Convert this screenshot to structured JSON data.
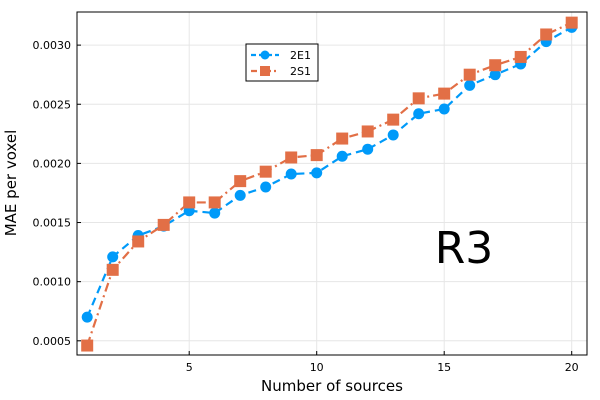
{
  "chart_data": {
    "type": "line",
    "xlabel": "Number of sources",
    "ylabel": "MAE per voxel",
    "xlim": [
      0.6,
      20.6
    ],
    "ylim": [
      0.00038,
      0.00328
    ],
    "xticks": [
      5,
      10,
      15,
      20
    ],
    "xtick_labels": [
      "5",
      "10",
      "15",
      "20"
    ],
    "yticks": [
      0.0005,
      0.001,
      0.0015,
      0.002,
      0.0025,
      0.003
    ],
    "ytick_labels": [
      "0.0005",
      "0.0010",
      "0.0015",
      "0.0020",
      "0.0025",
      "0.0030"
    ],
    "grid": true,
    "legend_position": "top-center",
    "annotation": "R3",
    "x": [
      1,
      2,
      3,
      4,
      5,
      6,
      7,
      8,
      9,
      10,
      11,
      12,
      13,
      14,
      15,
      16,
      17,
      18,
      19,
      20
    ],
    "series": [
      {
        "name": "2E1",
        "color": "#009AF9",
        "marker": "circle",
        "linestyle": "dashed",
        "values": [
          0.0007,
          0.00121,
          0.00139,
          0.00147,
          0.0016,
          0.00158,
          0.00173,
          0.0018,
          0.00191,
          0.00192,
          0.00206,
          0.00212,
          0.00224,
          0.00242,
          0.00246,
          0.00266,
          0.00275,
          0.00284,
          0.00303,
          0.00315
        ]
      },
      {
        "name": "2S1",
        "color": "#E26F46",
        "marker": "square",
        "linestyle": "dashdot",
        "values": [
          0.00046,
          0.0011,
          0.00134,
          0.00148,
          0.00167,
          0.00167,
          0.00185,
          0.00193,
          0.00205,
          0.00207,
          0.00221,
          0.00227,
          0.00237,
          0.00255,
          0.00259,
          0.00275,
          0.00283,
          0.0029,
          0.00309,
          0.00319
        ]
      }
    ]
  }
}
